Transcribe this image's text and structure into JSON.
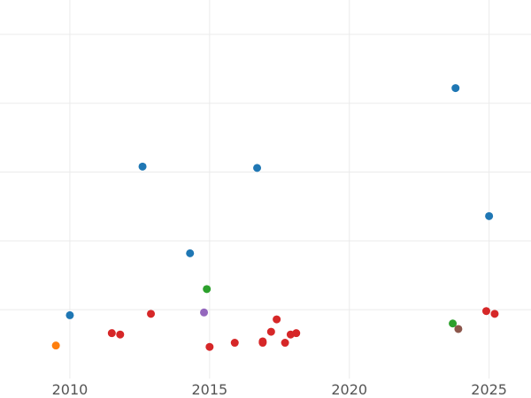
{
  "chart_data": {
    "type": "scatter",
    "title": "",
    "xlabel": "",
    "ylabel": "",
    "grid": true,
    "xlim": [
      2007.5,
      2026.5
    ],
    "ylim": [
      0,
      27.5
    ],
    "x_ticks": [
      2010,
      2015,
      2020,
      2025
    ],
    "x_tick_labels": [
      "2010",
      "2015",
      "2020",
      "2025"
    ],
    "y_gridlines": [
      5,
      10,
      15,
      20,
      25
    ],
    "points": [
      {
        "x": 2009.5,
        "y": 2.4,
        "color": "#ff7f0e"
      },
      {
        "x": 2010.0,
        "y": 4.6,
        "color": "#1f77b4"
      },
      {
        "x": 2011.5,
        "y": 3.3,
        "color": "#d62728"
      },
      {
        "x": 2011.8,
        "y": 3.2,
        "color": "#d62728"
      },
      {
        "x": 2012.6,
        "y": 15.4,
        "color": "#1f77b4"
      },
      {
        "x": 2012.9,
        "y": 4.7,
        "color": "#d62728"
      },
      {
        "x": 2014.3,
        "y": 9.1,
        "color": "#1f77b4"
      },
      {
        "x": 2014.8,
        "y": 4.8,
        "color": "#9467bd"
      },
      {
        "x": 2014.9,
        "y": 6.5,
        "color": "#2ca02c"
      },
      {
        "x": 2015.0,
        "y": 2.3,
        "color": "#d62728"
      },
      {
        "x": 2015.9,
        "y": 2.6,
        "color": "#d62728"
      },
      {
        "x": 2016.7,
        "y": 15.3,
        "color": "#1f77b4"
      },
      {
        "x": 2016.9,
        "y": 2.6,
        "color": "#d62728"
      },
      {
        "x": 2016.9,
        "y": 2.7,
        "color": "#d62728"
      },
      {
        "x": 2017.2,
        "y": 3.4,
        "color": "#d62728"
      },
      {
        "x": 2017.4,
        "y": 4.3,
        "color": "#d62728"
      },
      {
        "x": 2017.7,
        "y": 2.6,
        "color": "#d62728"
      },
      {
        "x": 2017.9,
        "y": 3.2,
        "color": "#d62728"
      },
      {
        "x": 2018.1,
        "y": 3.3,
        "color": "#d62728"
      },
      {
        "x": 2023.7,
        "y": 4.0,
        "color": "#2ca02c"
      },
      {
        "x": 2023.8,
        "y": 21.1,
        "color": "#1f77b4"
      },
      {
        "x": 2023.9,
        "y": 3.6,
        "color": "#8c564b"
      },
      {
        "x": 2024.9,
        "y": 4.9,
        "color": "#d62728"
      },
      {
        "x": 2025.0,
        "y": 11.8,
        "color": "#1f77b4"
      },
      {
        "x": 2025.2,
        "y": 4.7,
        "color": "#d62728"
      }
    ]
  }
}
